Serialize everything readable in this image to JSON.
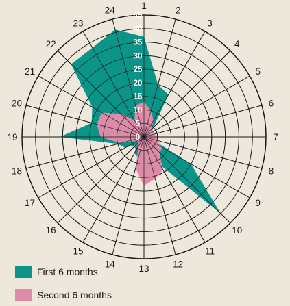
{
  "chart_data": {
    "type": "radar",
    "title": "",
    "spokes": [
      "1",
      "2",
      "3",
      "4",
      "5",
      "6",
      "7",
      "8",
      "9",
      "10",
      "11",
      "12",
      "13",
      "14",
      "15",
      "16",
      "17",
      "18",
      "19",
      "20",
      "21",
      "22",
      "23",
      "24"
    ],
    "rlim": [
      0,
      45
    ],
    "ticks": [
      0,
      5,
      10,
      15,
      20,
      25,
      30,
      35,
      40,
      45
    ],
    "tick_labels": [
      "0",
      "5",
      "10",
      "15",
      "20",
      "25",
      "30",
      "35",
      "40",
      "45"
    ],
    "grid": true,
    "legend_position": "bottom-left",
    "series": [
      {
        "name": "First 6 months",
        "color": "#0d9488",
        "values": [
          37,
          20,
          18,
          5,
          3,
          3,
          4,
          3,
          20,
          40,
          12,
          5,
          10,
          8,
          7,
          4,
          8,
          10,
          31,
          20,
          22,
          38,
          38,
          41
        ]
      },
      {
        "name": "Second 6 months",
        "color": "#dc8ca8",
        "values": [
          13,
          10,
          7,
          4,
          4,
          4,
          5,
          5,
          8,
          8,
          14,
          16,
          18,
          12,
          4,
          3,
          3,
          9,
          16,
          18,
          18,
          12,
          7,
          12
        ]
      }
    ]
  }
}
